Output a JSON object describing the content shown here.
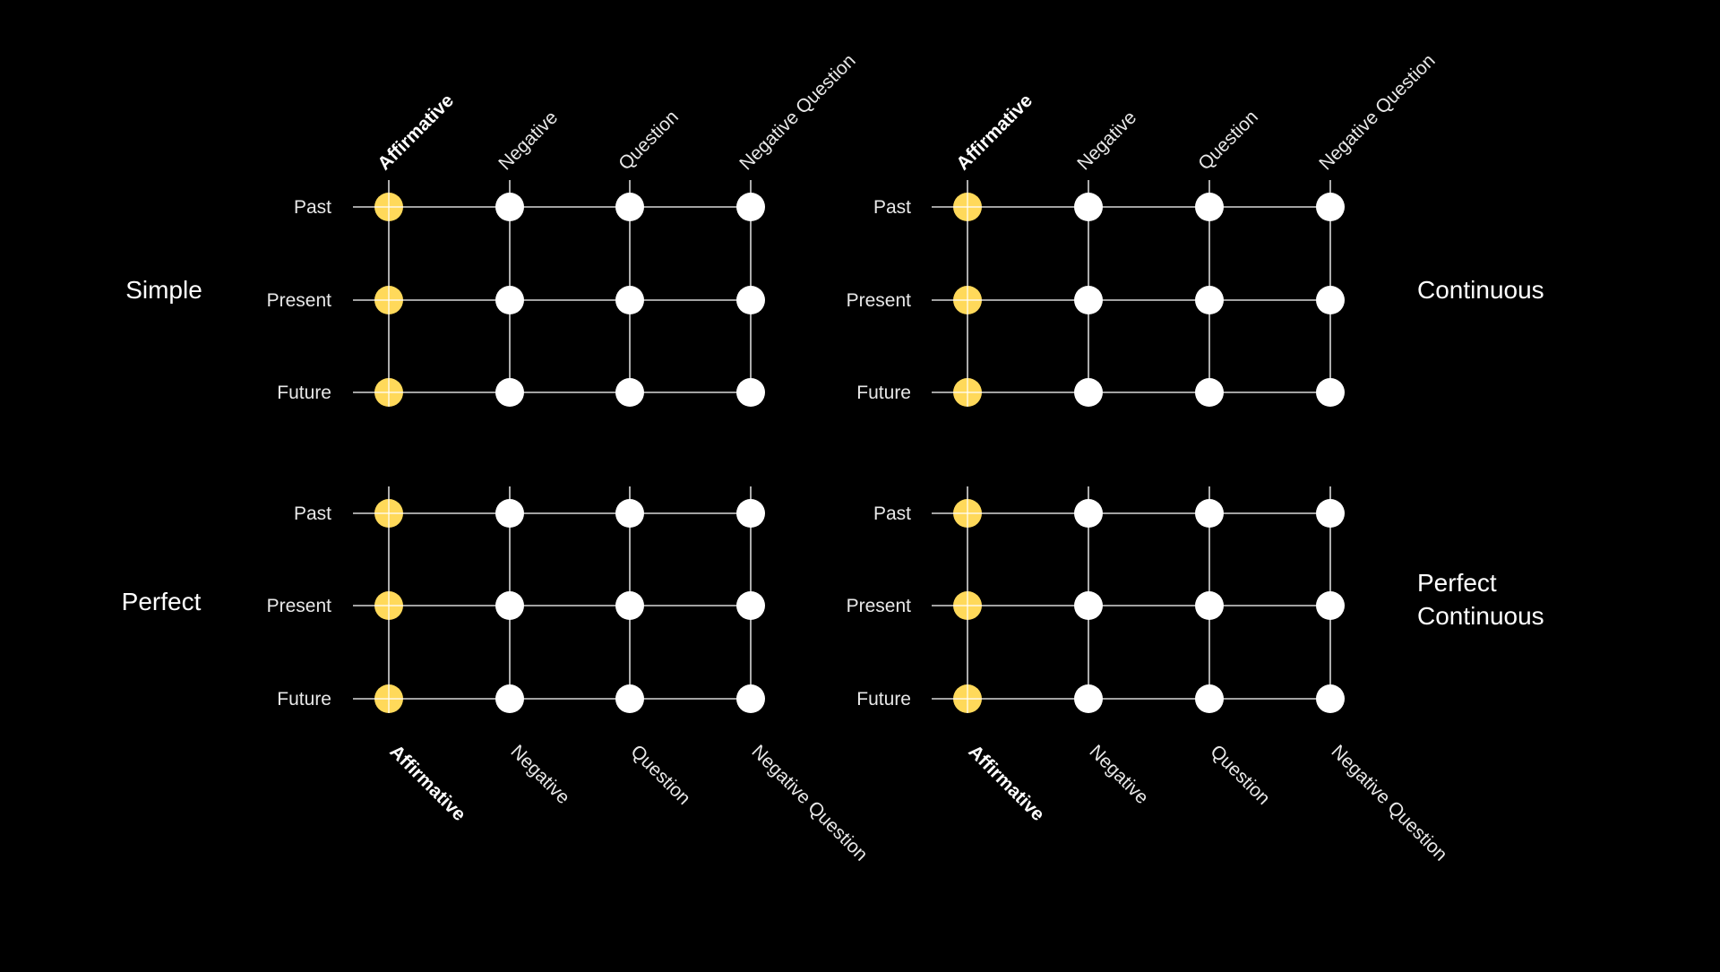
{
  "columns": [
    "Affirmative",
    "Negative",
    "Question",
    "Negative Question"
  ],
  "rows": [
    "Past",
    "Present",
    "Future"
  ],
  "colors": {
    "background": "#000000",
    "highlight_dot": "#FFD95A",
    "plain_dot": "#FFFFFF",
    "lines": "#D8D8D8"
  },
  "highlighted_column": "Affirmative",
  "sections": [
    {
      "name": [
        "Simple"
      ],
      "column_labels": "top"
    },
    {
      "name": [
        "Continuous"
      ],
      "column_labels": "top"
    },
    {
      "name": [
        "Perfect"
      ],
      "column_labels": "bottom"
    },
    {
      "name": [
        "Perfect",
        "Continuous"
      ],
      "column_labels": "bottom"
    }
  ]
}
